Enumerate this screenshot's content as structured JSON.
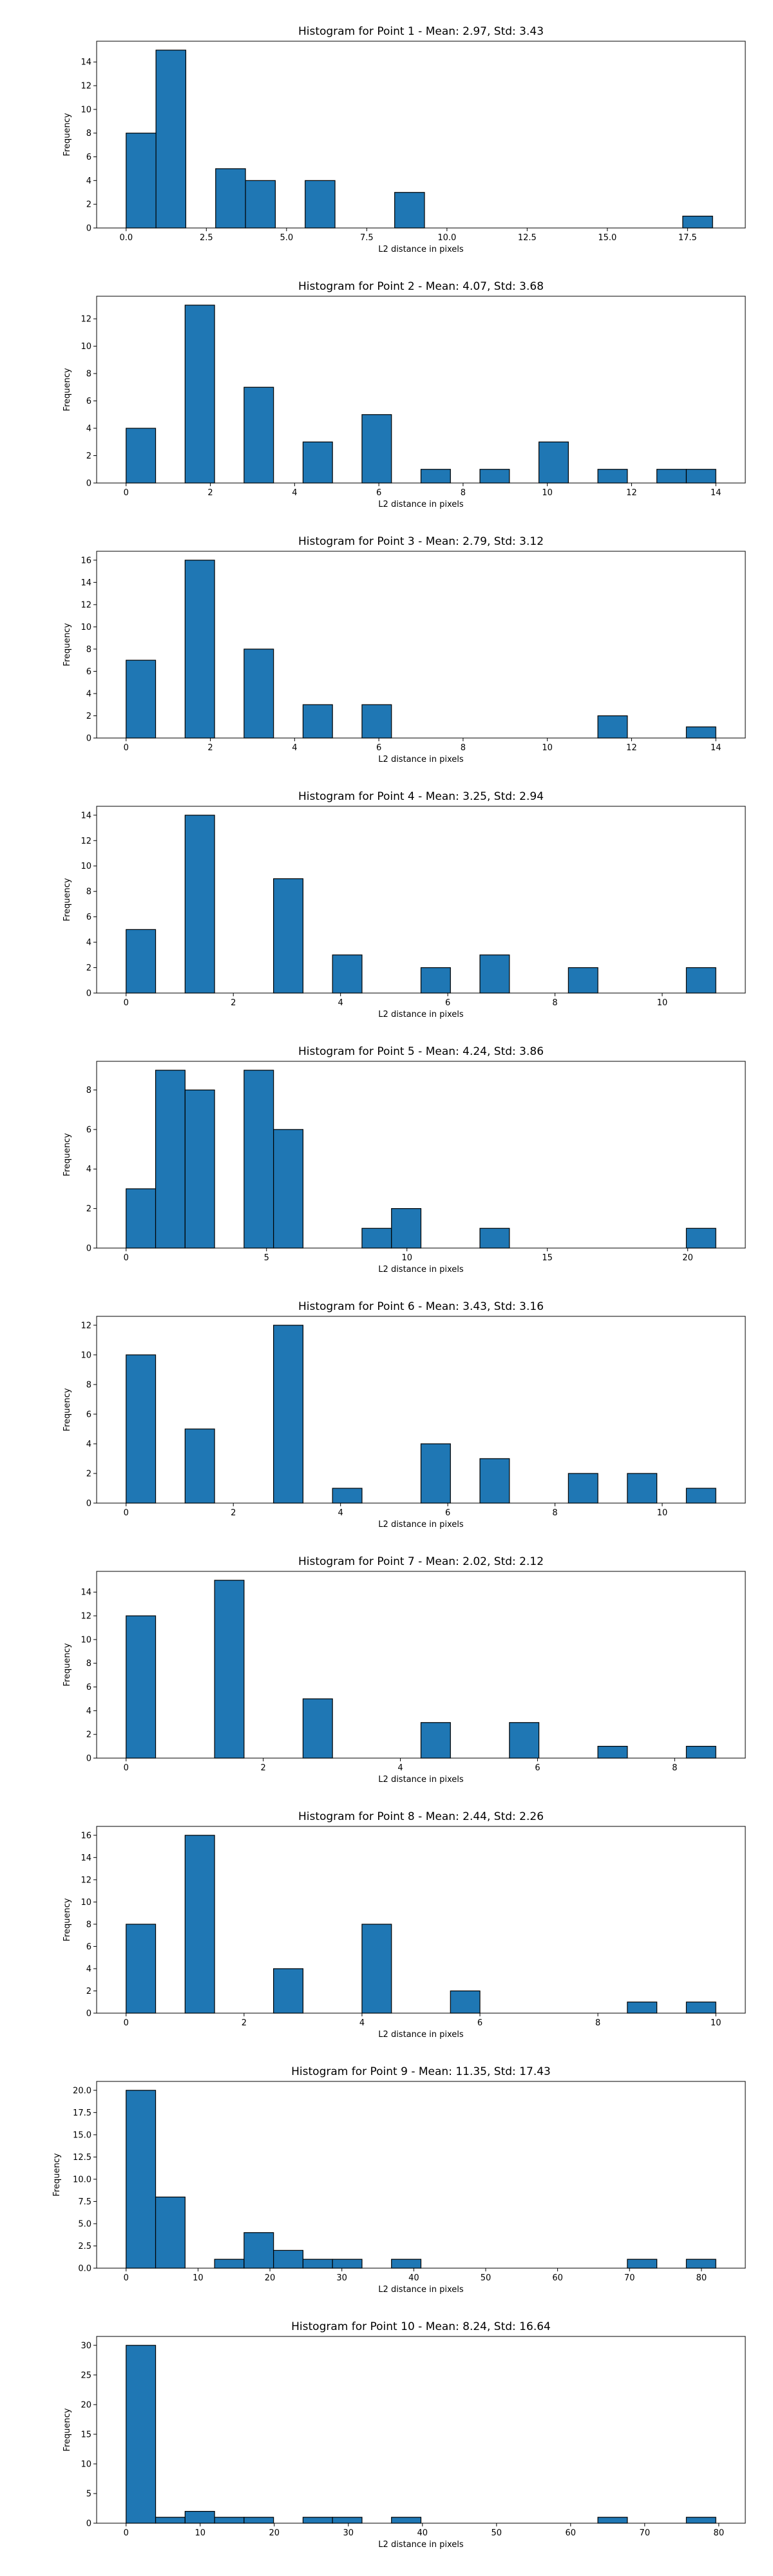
{
  "chart_data": [
    {
      "type": "bar",
      "title": "Histogram for Point 1 - Mean: 2.97, Std: 3.43",
      "xlabel": "L2 distance in pixels",
      "ylabel": "Frequency",
      "xlim": [
        -0.92,
        19.3
      ],
      "ylim": [
        0,
        15.75
      ],
      "xticks": [
        0.0,
        2.5,
        5.0,
        7.5,
        10.0,
        12.5,
        15.0,
        17.5
      ],
      "xtick_labels": [
        "0.0",
        "2.5",
        "5.0",
        "7.5",
        "10.0",
        "12.5",
        "15.0",
        "17.5"
      ],
      "yticks": [
        0,
        2,
        4,
        6,
        8,
        10,
        12,
        14
      ],
      "bins": [
        [
          0.0,
          0.93,
          8
        ],
        [
          0.93,
          1.86,
          15
        ],
        [
          2.79,
          3.72,
          5
        ],
        [
          3.72,
          4.65,
          4
        ],
        [
          5.58,
          6.51,
          4
        ],
        [
          8.37,
          9.3,
          3
        ],
        [
          17.35,
          18.28,
          1
        ]
      ]
    },
    {
      "type": "bar",
      "title": "Histogram for Point 2 - Mean: 4.07, Std: 3.68",
      "xlabel": "L2 distance in pixels",
      "ylabel": "Frequency",
      "xlim": [
        -0.7,
        14.7
      ],
      "ylim": [
        0,
        13.65
      ],
      "xticks": [
        0,
        2,
        4,
        6,
        8,
        10,
        12,
        14
      ],
      "xtick_labels": [
        "0",
        "2",
        "4",
        "6",
        "8",
        "10",
        "12",
        "14"
      ],
      "yticks": [
        0,
        2,
        4,
        6,
        8,
        10,
        12
      ],
      "bins": [
        [
          0.0,
          0.7,
          4
        ],
        [
          1.4,
          2.1,
          13
        ],
        [
          2.8,
          3.5,
          7
        ],
        [
          4.2,
          4.9,
          3
        ],
        [
          5.6,
          6.3,
          5
        ],
        [
          7.0,
          7.7,
          1
        ],
        [
          8.4,
          9.1,
          1
        ],
        [
          9.8,
          10.5,
          3
        ],
        [
          11.2,
          11.9,
          1
        ],
        [
          12.6,
          13.3,
          1
        ],
        [
          13.3,
          14.0,
          1
        ]
      ]
    },
    {
      "type": "bar",
      "title": "Histogram for Point 3 - Mean: 2.79, Std: 3.12",
      "xlabel": "L2 distance in pixels",
      "ylabel": "Frequency",
      "xlim": [
        -0.7,
        14.7
      ],
      "ylim": [
        0,
        16.8
      ],
      "xticks": [
        0,
        2,
        4,
        6,
        8,
        10,
        12,
        14
      ],
      "xtick_labels": [
        "0",
        "2",
        "4",
        "6",
        "8",
        "10",
        "12",
        "14"
      ],
      "yticks": [
        0,
        2,
        4,
        6,
        8,
        10,
        12,
        14,
        16
      ],
      "bins": [
        [
          0.0,
          0.7,
          7
        ],
        [
          1.4,
          2.1,
          16
        ],
        [
          2.8,
          3.5,
          8
        ],
        [
          4.2,
          4.9,
          3
        ],
        [
          5.6,
          6.3,
          3
        ],
        [
          11.2,
          11.9,
          2
        ],
        [
          13.3,
          14.0,
          1
        ]
      ]
    },
    {
      "type": "bar",
      "title": "Histogram for Point 4 - Mean: 3.25, Std: 2.94",
      "xlabel": "L2 distance in pixels",
      "ylabel": "Frequency",
      "xlim": [
        -0.55,
        11.55
      ],
      "ylim": [
        0,
        14.7
      ],
      "xticks": [
        0,
        2,
        4,
        6,
        8,
        10
      ],
      "xtick_labels": [
        "0",
        "2",
        "4",
        "6",
        "8",
        "10"
      ],
      "yticks": [
        0,
        2,
        4,
        6,
        8,
        10,
        12,
        14
      ],
      "bins": [
        [
          0.0,
          0.55,
          5
        ],
        [
          1.1,
          1.65,
          14
        ],
        [
          2.75,
          3.3,
          9
        ],
        [
          3.85,
          4.4,
          3
        ],
        [
          5.5,
          6.05,
          2
        ],
        [
          6.6,
          7.15,
          3
        ],
        [
          8.25,
          8.8,
          2
        ],
        [
          10.45,
          11.0,
          2
        ]
      ]
    },
    {
      "type": "bar",
      "title": "Histogram for Point 5 - Mean: 4.24, Std: 3.86",
      "xlabel": "L2 distance in pixels",
      "ylabel": "Frequency",
      "xlim": [
        -1.05,
        22.05
      ],
      "ylim": [
        0,
        9.45
      ],
      "xticks": [
        0,
        5,
        10,
        15,
        20
      ],
      "xtick_labels": [
        "0",
        "5",
        "10",
        "15",
        "20"
      ],
      "yticks": [
        0,
        2,
        4,
        6,
        8
      ],
      "bins": [
        [
          0.0,
          1.05,
          3
        ],
        [
          1.05,
          2.1,
          9
        ],
        [
          2.1,
          3.15,
          8
        ],
        [
          4.2,
          5.25,
          9
        ],
        [
          5.25,
          6.3,
          6
        ],
        [
          8.4,
          9.45,
          1
        ],
        [
          9.45,
          10.5,
          2
        ],
        [
          12.6,
          13.65,
          1
        ],
        [
          19.95,
          21.0,
          1
        ]
      ]
    },
    {
      "type": "bar",
      "title": "Histogram for Point 6 - Mean: 3.43, Std: 3.16",
      "xlabel": "L2 distance in pixels",
      "ylabel": "Frequency",
      "xlim": [
        -0.55,
        11.55
      ],
      "ylim": [
        0,
        12.6
      ],
      "xticks": [
        0,
        2,
        4,
        6,
        8,
        10
      ],
      "xtick_labels": [
        "0",
        "2",
        "4",
        "6",
        "8",
        "10"
      ],
      "yticks": [
        0,
        2,
        4,
        6,
        8,
        10,
        12
      ],
      "bins": [
        [
          0.0,
          0.55,
          10
        ],
        [
          1.1,
          1.65,
          5
        ],
        [
          2.75,
          3.3,
          12
        ],
        [
          3.85,
          4.4,
          1
        ],
        [
          5.5,
          6.05,
          4
        ],
        [
          6.6,
          7.15,
          3
        ],
        [
          8.25,
          8.8,
          2
        ],
        [
          9.35,
          9.9,
          2
        ],
        [
          10.45,
          11.0,
          1
        ]
      ]
    },
    {
      "type": "bar",
      "title": "Histogram for Point 7 - Mean: 2.02, Std: 2.12",
      "xlabel": "L2 distance in pixels",
      "ylabel": "Frequency",
      "xlim": [
        -0.43,
        9.03
      ],
      "ylim": [
        0,
        15.75
      ],
      "xticks": [
        0,
        2,
        4,
        6,
        8
      ],
      "xtick_labels": [
        "0",
        "2",
        "4",
        "6",
        "8"
      ],
      "yticks": [
        0,
        2,
        4,
        6,
        8,
        10,
        12,
        14
      ],
      "bins": [
        [
          0.0,
          0.43,
          12
        ],
        [
          1.29,
          1.72,
          15
        ],
        [
          2.58,
          3.01,
          5
        ],
        [
          4.3,
          4.73,
          3
        ],
        [
          5.59,
          6.02,
          3
        ],
        [
          6.88,
          7.31,
          1
        ],
        [
          8.17,
          8.6,
          1
        ]
      ]
    },
    {
      "type": "bar",
      "title": "Histogram for Point 8 - Mean: 2.44, Std: 2.26",
      "xlabel": "L2 distance in pixels",
      "ylabel": "Frequency",
      "xlim": [
        -0.5,
        10.5
      ],
      "ylim": [
        0,
        16.8
      ],
      "xticks": [
        0,
        2,
        4,
        6,
        8,
        10
      ],
      "xtick_labels": [
        "0",
        "2",
        "4",
        "6",
        "8",
        "10"
      ],
      "yticks": [
        0,
        2,
        4,
        6,
        8,
        10,
        12,
        14,
        16
      ],
      "bins": [
        [
          0.0,
          0.5,
          8
        ],
        [
          1.0,
          1.5,
          16
        ],
        [
          2.5,
          3.0,
          4
        ],
        [
          4.0,
          4.5,
          8
        ],
        [
          5.5,
          6.0,
          2
        ],
        [
          8.5,
          9.0,
          1
        ],
        [
          9.5,
          10.0,
          1
        ]
      ]
    },
    {
      "type": "bar",
      "title": "Histogram for Point 9 - Mean: 11.35, Std: 17.43",
      "xlabel": "L2 distance in pixels",
      "ylabel": "Frequency",
      "xlim": [
        -4.1,
        86.1
      ],
      "ylim": [
        0,
        21.0
      ],
      "xticks": [
        0,
        10,
        20,
        30,
        40,
        50,
        60,
        70,
        80
      ],
      "xtick_labels": [
        "0",
        "10",
        "20",
        "30",
        "40",
        "50",
        "60",
        "70",
        "80"
      ],
      "yticks": [
        0.0,
        2.5,
        5.0,
        7.5,
        10.0,
        12.5,
        15.0,
        17.5,
        20.0
      ],
      "ytick_labels": [
        "0.0",
        "2.5",
        "5.0",
        "7.5",
        "10.0",
        "12.5",
        "15.0",
        "17.5",
        "20.0"
      ],
      "bins": [
        [
          0.0,
          4.1,
          20
        ],
        [
          4.1,
          8.2,
          8
        ],
        [
          12.3,
          16.4,
          1
        ],
        [
          16.4,
          20.5,
          4
        ],
        [
          20.5,
          24.6,
          2
        ],
        [
          24.6,
          28.7,
          1
        ],
        [
          28.7,
          32.8,
          1
        ],
        [
          36.9,
          41.0,
          1
        ],
        [
          69.7,
          73.8,
          1
        ],
        [
          77.9,
          82.0,
          1
        ]
      ]
    },
    {
      "type": "bar",
      "title": "Histogram for Point 10 - Mean: 8.24, Std: 16.64",
      "xlabel": "L2 distance in pixels",
      "ylabel": "Frequency",
      "xlim": [
        -3.98,
        83.58
      ],
      "ylim": [
        0,
        31.5
      ],
      "xticks": [
        0,
        10,
        20,
        30,
        40,
        50,
        60,
        70,
        80
      ],
      "xtick_labels": [
        "0",
        "10",
        "20",
        "30",
        "40",
        "50",
        "60",
        "70",
        "80"
      ],
      "yticks": [
        0,
        5,
        10,
        15,
        20,
        25,
        30
      ],
      "bins": [
        [
          0.0,
          3.98,
          30
        ],
        [
          3.98,
          7.96,
          1
        ],
        [
          7.96,
          11.94,
          2
        ],
        [
          11.94,
          15.92,
          1
        ],
        [
          15.92,
          19.9,
          1
        ],
        [
          23.88,
          27.86,
          1
        ],
        [
          27.86,
          31.84,
          1
        ],
        [
          35.82,
          39.8,
          1
        ],
        [
          63.68,
          67.66,
          1
        ],
        [
          75.62,
          79.6,
          1
        ]
      ]
    }
  ]
}
